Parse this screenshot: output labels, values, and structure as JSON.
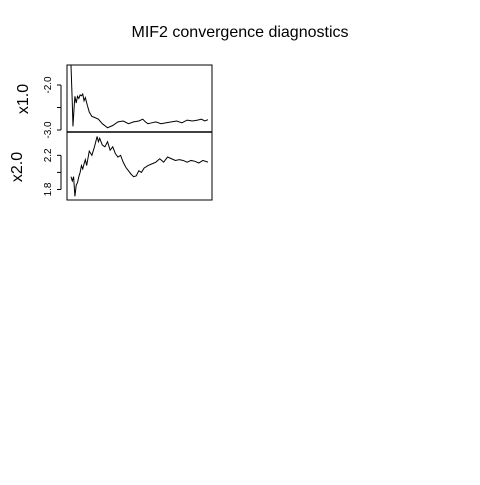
{
  "chart_data": {
    "type": "line",
    "title": "MIF2 convergence diagnostics",
    "grid": false,
    "panels": [
      {
        "ylabel": "x1.0",
        "ylim": [
          -3.0,
          -1.6
        ],
        "yticks": [
          -3.0,
          -2.5,
          -2.0
        ],
        "ytick_labels": [
          "-3.0",
          "",
          "-2.0"
        ],
        "series": [
          {
            "x": [
              0,
              2,
              3,
              5,
              6,
              8,
              10,
              12,
              14,
              16,
              18,
              20,
              22,
              25,
              28,
              32,
              36,
              42,
              48,
              56,
              64,
              72,
              80,
              88,
              96,
              104,
              110,
              114,
              118,
              124,
              130,
              138,
              146,
              154,
              162,
              170,
              178,
              186,
              194,
              200,
              205,
              210
            ],
            "y": [
              -1.4,
              -2.4,
              -2.92,
              -2.45,
              -2.25,
              -2.4,
              -2.25,
              -2.3,
              -2.22,
              -2.24,
              -2.2,
              -2.35,
              -2.28,
              -2.45,
              -2.6,
              -2.7,
              -2.72,
              -2.76,
              -2.86,
              -2.95,
              -2.9,
              -2.82,
              -2.8,
              -2.86,
              -2.82,
              -2.8,
              -2.76,
              -2.82,
              -2.86,
              -2.84,
              -2.82,
              -2.86,
              -2.84,
              -2.82,
              -2.8,
              -2.84,
              -2.78,
              -2.8,
              -2.78,
              -2.76,
              -2.8,
              -2.77
            ]
          }
        ]
      },
      {
        "ylabel": "x2.0",
        "ylim": [
          1.7,
          2.45
        ],
        "yticks": [
          1.8,
          2.0,
          2.2
        ],
        "ytick_labels": [
          "1.8",
          "",
          "2.2"
        ],
        "series": [
          {
            "x": [
              0,
              2,
              4,
              6,
              8,
              10,
              12,
              14,
              16,
              18,
              20,
              22,
              24,
              28,
              32,
              36,
              40,
              42,
              44,
              48,
              52,
              56,
              60,
              64,
              68,
              72,
              76,
              80,
              84,
              88,
              92,
              96,
              100,
              104,
              108,
              112,
              118,
              124,
              130,
              136,
              142,
              148,
              154,
              160,
              166,
              172,
              178,
              184,
              190,
              196,
              202,
              210
            ],
            "y": [
              1.95,
              1.9,
              1.95,
              1.72,
              1.85,
              1.88,
              1.95,
              2.0,
              2.08,
              2.04,
              2.1,
              2.15,
              2.08,
              2.25,
              2.2,
              2.3,
              2.42,
              2.36,
              2.4,
              2.32,
              2.3,
              2.36,
              2.26,
              2.3,
              2.22,
              2.18,
              2.2,
              2.12,
              2.06,
              2.02,
              1.98,
              1.95,
              1.96,
              2.02,
              2.0,
              2.05,
              2.08,
              2.1,
              2.12,
              2.16,
              2.12,
              2.18,
              2.16,
              2.14,
              2.15,
              2.14,
              2.12,
              2.14,
              2.13,
              2.11,
              2.14,
              2.12
            ]
          }
        ]
      }
    ]
  }
}
